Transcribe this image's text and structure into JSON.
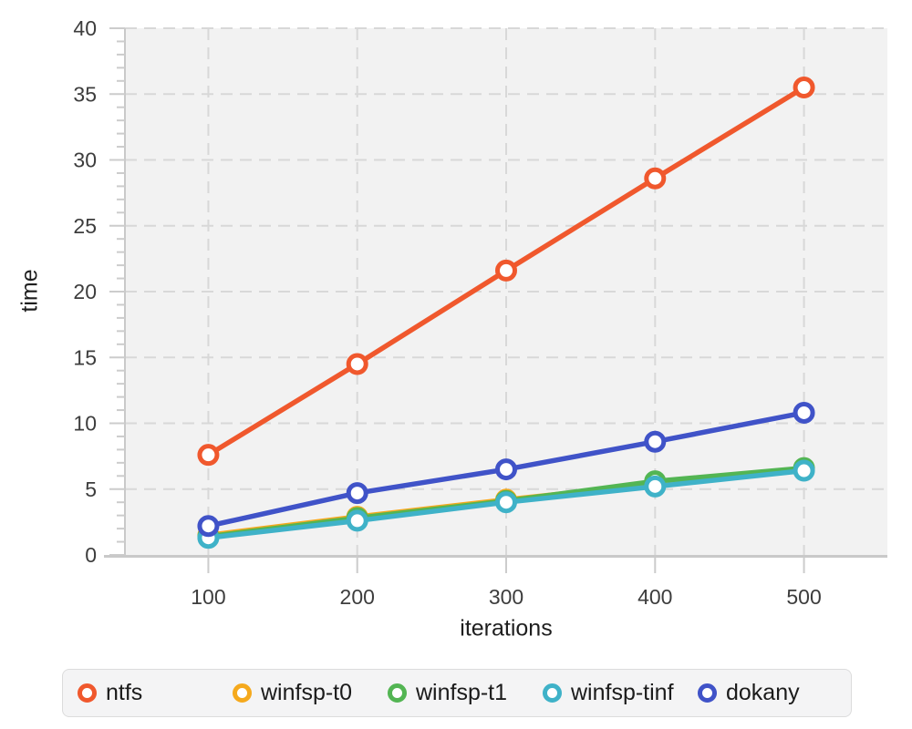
{
  "chart_data": {
    "type": "line",
    "title": "",
    "xlabel": "iterations",
    "ylabel": "time",
    "x": [
      100,
      200,
      300,
      400,
      500
    ],
    "xlim": [
      44,
      556
    ],
    "ylim": [
      0,
      40
    ],
    "y_major_step": 5,
    "y_minor_step": 1,
    "grid": "dashed horizontal and vertical at major ticks",
    "legend_position": "bottom",
    "series": [
      {
        "name": "ntfs",
        "color": "#F0582D",
        "values": [
          7.6,
          14.5,
          21.6,
          28.6,
          35.5
        ]
      },
      {
        "name": "winfsp-t0",
        "color": "#F5A91D",
        "values": [
          1.5,
          2.9,
          4.2,
          5.4,
          6.5
        ]
      },
      {
        "name": "winfsp-t1",
        "color": "#53B553",
        "values": [
          1.4,
          2.8,
          4.1,
          5.6,
          6.6
        ]
      },
      {
        "name": "winfsp-tinf",
        "color": "#3FB2C8",
        "values": [
          1.3,
          2.6,
          4.0,
          5.2,
          6.4
        ]
      },
      {
        "name": "dokany",
        "color": "#4053C8",
        "values": [
          2.2,
          4.7,
          6.5,
          8.6,
          10.8
        ]
      }
    ],
    "draw_order": [
      "winfsp-t0",
      "winfsp-t1",
      "winfsp-tinf",
      "dokany",
      "ntfs"
    ]
  },
  "axes": {
    "x_ticks": [
      "100",
      "200",
      "300",
      "400",
      "500"
    ],
    "y_ticks": [
      "0",
      "5",
      "10",
      "15",
      "20",
      "25",
      "30",
      "35",
      "40"
    ]
  },
  "legend": {
    "items": [
      "ntfs",
      "winfsp-t0",
      "winfsp-t1",
      "winfsp-tinf",
      "dokany"
    ]
  },
  "colors": {
    "plot_bg": "#f2f2f2",
    "grid": "#d8d8d8",
    "axis_line": "#c9c9c9",
    "tick": "#cccccc",
    "tick_label": "#3d3d3d",
    "axis_title": "#1e1e1e",
    "legend_bg": "#f4f4f5",
    "legend_border": "#dcdcdc",
    "marker_fill": "#ffffff"
  }
}
